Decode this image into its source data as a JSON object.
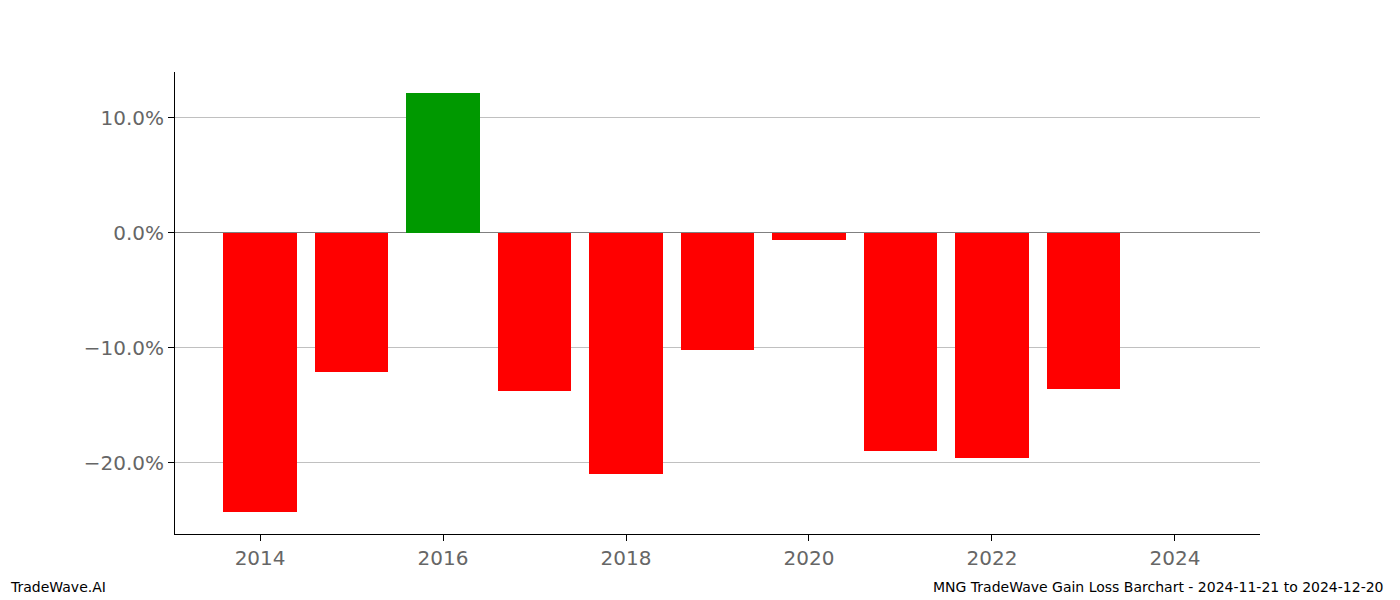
{
  "chart_data": {
    "type": "bar",
    "x": [
      2014,
      2015,
      2016,
      2017,
      2018,
      2019,
      2020,
      2021,
      2022,
      2023
    ],
    "values": [
      -24.3,
      -12.1,
      12.2,
      -13.8,
      -21.0,
      -10.2,
      -0.6,
      -19.0,
      -19.6,
      -13.6
    ],
    "colors": [
      "#ff0000",
      "#ff0000",
      "#009900",
      "#ff0000",
      "#ff0000",
      "#ff0000",
      "#ff0000",
      "#ff0000",
      "#ff0000",
      "#ff0000"
    ],
    "xlim": [
      2013.07,
      2024.93
    ],
    "xticks": [
      2014,
      2016,
      2018,
      2020,
      2022,
      2024
    ],
    "ylim": [
      -26.2,
      14.0
    ],
    "yticks": [
      {
        "value": -20,
        "label": "−20.0%"
      },
      {
        "value": -10,
        "label": "−10.0%"
      },
      {
        "value": 0,
        "label": "0.0%"
      },
      {
        "value": 10,
        "label": "10.0%"
      }
    ],
    "grid": true,
    "annotations": [
      "TradeWave.AI",
      "MNG TradeWave Gain Loss Barchart - 2024-11-21 to 2024-12-20"
    ]
  }
}
